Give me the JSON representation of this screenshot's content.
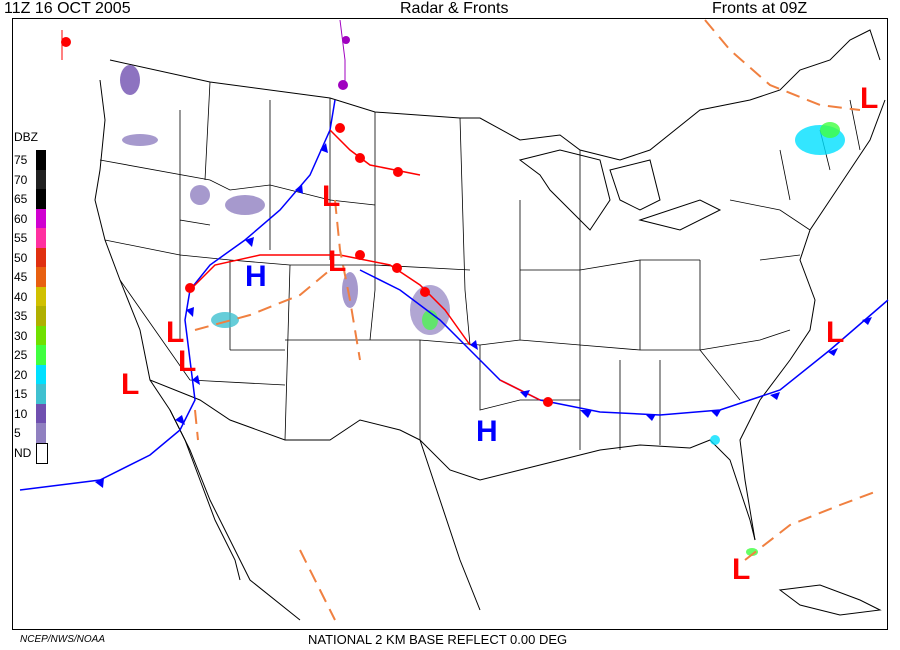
{
  "header": {
    "left": "11Z  16 OCT  2005",
    "center": "Radar & Fronts",
    "right": "Fronts at 09Z"
  },
  "footer": {
    "credit": "NCEP/NWS/NOAA",
    "product": "NATIONAL 2 KM BASE REFLECT 0.00 DEG"
  },
  "legend": {
    "title": "DBZ",
    "levels": [
      {
        "label": "75",
        "color": "#000000"
      },
      {
        "label": "70",
        "color": "#202020"
      },
      {
        "label": "65",
        "color": "#000000"
      },
      {
        "label": "60",
        "color": "#d000d0"
      },
      {
        "label": "55",
        "color": "#ff30a0"
      },
      {
        "label": "50",
        "color": "#e03010"
      },
      {
        "label": "45",
        "color": "#e86010"
      },
      {
        "label": "40",
        "color": "#d0c000"
      },
      {
        "label": "35",
        "color": "#b0b000"
      },
      {
        "label": "30",
        "color": "#70e000"
      },
      {
        "label": "25",
        "color": "#40ff40"
      },
      {
        "label": "20",
        "color": "#00e0ff"
      },
      {
        "label": "15",
        "color": "#40c0d0"
      },
      {
        "label": "10",
        "color": "#7050b0"
      },
      {
        "label": "5",
        "color": "#9080c0"
      },
      {
        "label": "ND",
        "color": "#ffffff"
      }
    ]
  },
  "pressure_systems": [
    {
      "type": "L",
      "color": "#ff0000"
    },
    {
      "type": "L",
      "color": "#ff0000"
    },
    {
      "type": "L",
      "color": "#ff0000"
    },
    {
      "type": "L",
      "color": "#ff0000"
    },
    {
      "type": "L",
      "color": "#ff0000"
    },
    {
      "type": "L",
      "color": "#ff0000"
    },
    {
      "type": "L",
      "color": "#ff0000"
    },
    {
      "type": "L",
      "color": "#ff0000"
    },
    {
      "type": "H",
      "color": "#0000ff"
    },
    {
      "type": "H",
      "color": "#0000ff"
    }
  ],
  "colors": {
    "cold_front": "#0000ff",
    "warm_front": "#ff0000",
    "trough": "#f08040",
    "border": "#000000"
  }
}
